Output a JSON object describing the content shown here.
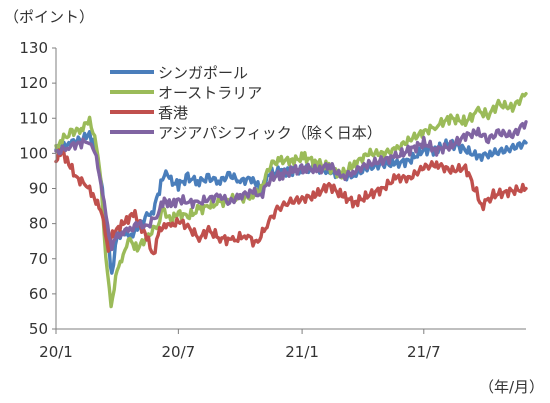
{
  "chart_data": {
    "type": "line",
    "unit_label": "（ポイント）",
    "x_unit_label": "（年/月）",
    "ylim": [
      50,
      130
    ],
    "y_ticks": [
      50,
      60,
      70,
      80,
      90,
      100,
      110,
      120,
      130
    ],
    "x_range": [
      "2020-01-01",
      "2021-11-30"
    ],
    "x_ticks": [
      {
        "date": "2020-01-01",
        "label": "20/1"
      },
      {
        "date": "2020-07-01",
        "label": "20/7"
      },
      {
        "date": "2021-01-01",
        "label": "21/1"
      },
      {
        "date": "2021-07-01",
        "label": "21/7"
      }
    ],
    "grid": false,
    "legend_position": "top-left",
    "series": [
      {
        "name": "シンガポール",
        "color": "#4a7ebb",
        "points": [
          [
            "2020-01-01",
            101
          ],
          [
            "2020-01-20",
            103
          ],
          [
            "2020-02-10",
            104
          ],
          [
            "2020-02-20",
            106
          ],
          [
            "2020-03-01",
            100
          ],
          [
            "2020-03-10",
            90
          ],
          [
            "2020-03-18",
            75
          ],
          [
            "2020-03-24",
            66
          ],
          [
            "2020-04-01",
            76
          ],
          [
            "2020-04-10",
            78
          ],
          [
            "2020-04-20",
            76
          ],
          [
            "2020-05-01",
            79
          ],
          [
            "2020-05-15",
            82
          ],
          [
            "2020-05-25",
            84
          ],
          [
            "2020-06-05",
            91
          ],
          [
            "2020-06-10",
            95
          ],
          [
            "2020-06-20",
            92
          ],
          [
            "2020-07-01",
            91
          ],
          [
            "2020-07-15",
            93
          ],
          [
            "2020-08-01",
            92
          ],
          [
            "2020-08-15",
            93
          ],
          [
            "2020-09-01",
            92
          ],
          [
            "2020-09-15",
            94
          ],
          [
            "2020-10-01",
            92
          ],
          [
            "2020-10-20",
            93
          ],
          [
            "2020-11-01",
            89
          ],
          [
            "2020-11-10",
            94
          ],
          [
            "2020-12-01",
            95
          ],
          [
            "2021-01-01",
            95
          ],
          [
            "2021-01-20",
            96
          ],
          [
            "2021-02-10",
            95
          ],
          [
            "2021-03-01",
            93
          ],
          [
            "2021-03-20",
            94
          ],
          [
            "2021-04-10",
            96
          ],
          [
            "2021-05-01",
            97
          ],
          [
            "2021-05-20",
            97
          ],
          [
            "2021-06-10",
            98
          ],
          [
            "2021-07-01",
            101
          ],
          [
            "2021-07-20",
            101
          ],
          [
            "2021-08-10",
            103
          ],
          [
            "2021-09-01",
            101
          ],
          [
            "2021-09-20",
            99
          ],
          [
            "2021-10-10",
            100
          ],
          [
            "2021-11-01",
            101
          ],
          [
            "2021-11-30",
            103
          ]
        ]
      },
      {
        "name": "オーストラリア",
        "color": "#9bbb59",
        "points": [
          [
            "2020-01-01",
            101
          ],
          [
            "2020-01-10",
            104
          ],
          [
            "2020-01-25",
            106
          ],
          [
            "2020-02-10",
            107
          ],
          [
            "2020-02-20",
            110
          ],
          [
            "2020-03-01",
            102
          ],
          [
            "2020-03-08",
            92
          ],
          [
            "2020-03-15",
            70
          ],
          [
            "2020-03-23",
            57
          ],
          [
            "2020-04-01",
            66
          ],
          [
            "2020-04-10",
            72
          ],
          [
            "2020-04-20",
            75
          ],
          [
            "2020-05-01",
            73
          ],
          [
            "2020-05-15",
            76
          ],
          [
            "2020-06-01",
            80
          ],
          [
            "2020-06-08",
            84
          ],
          [
            "2020-06-20",
            81
          ],
          [
            "2020-07-01",
            83
          ],
          [
            "2020-07-15",
            82
          ],
          [
            "2020-08-01",
            84
          ],
          [
            "2020-08-15",
            85
          ],
          [
            "2020-09-01",
            86
          ],
          [
            "2020-09-15",
            87
          ],
          [
            "2020-10-01",
            87
          ],
          [
            "2020-10-20",
            88
          ],
          [
            "2020-11-01",
            90
          ],
          [
            "2020-11-15",
            97
          ],
          [
            "2020-12-01",
            98
          ],
          [
            "2020-12-20",
            98
          ],
          [
            "2021-01-05",
            99
          ],
          [
            "2021-01-25",
            97
          ],
          [
            "2021-02-10",
            96
          ],
          [
            "2021-03-01",
            94
          ],
          [
            "2021-03-20",
            97
          ],
          [
            "2021-04-10",
            100
          ],
          [
            "2021-05-01",
            100
          ],
          [
            "2021-05-20",
            101
          ],
          [
            "2021-06-10",
            104
          ],
          [
            "2021-07-01",
            106
          ],
          [
            "2021-07-20",
            108
          ],
          [
            "2021-08-10",
            110
          ],
          [
            "2021-09-01",
            109
          ],
          [
            "2021-09-20",
            112
          ],
          [
            "2021-10-05",
            111
          ],
          [
            "2021-10-20",
            114
          ],
          [
            "2021-11-10",
            113
          ],
          [
            "2021-11-30",
            117
          ]
        ]
      },
      {
        "name": "香港",
        "color": "#c0504d",
        "points": [
          [
            "2020-01-01",
            98
          ],
          [
            "2020-01-10",
            101
          ],
          [
            "2020-01-20",
            97
          ],
          [
            "2020-02-01",
            93
          ],
          [
            "2020-02-15",
            91
          ],
          [
            "2020-02-25",
            88
          ],
          [
            "2020-03-05",
            85
          ],
          [
            "2020-03-12",
            80
          ],
          [
            "2020-03-19",
            73
          ],
          [
            "2020-03-25",
            77
          ],
          [
            "2020-04-05",
            79
          ],
          [
            "2020-04-15",
            81
          ],
          [
            "2020-04-25",
            83
          ],
          [
            "2020-05-05",
            80
          ],
          [
            "2020-05-15",
            76
          ],
          [
            "2020-05-25",
            71
          ],
          [
            "2020-06-01",
            77
          ],
          [
            "2020-06-10",
            80
          ],
          [
            "2020-06-20",
            79
          ],
          [
            "2020-07-01",
            81
          ],
          [
            "2020-07-15",
            79
          ],
          [
            "2020-08-01",
            76
          ],
          [
            "2020-08-15",
            78
          ],
          [
            "2020-09-01",
            76
          ],
          [
            "2020-09-20",
            75
          ],
          [
            "2020-10-10",
            77
          ],
          [
            "2020-10-25",
            74
          ],
          [
            "2020-11-10",
            80
          ],
          [
            "2020-11-25",
            84
          ],
          [
            "2020-12-10",
            86
          ],
          [
            "2021-01-01",
            87
          ],
          [
            "2021-01-20",
            88
          ],
          [
            "2021-02-10",
            91
          ],
          [
            "2021-03-01",
            88
          ],
          [
            "2021-03-20",
            86
          ],
          [
            "2021-04-10",
            88
          ],
          [
            "2021-05-01",
            90
          ],
          [
            "2021-05-20",
            93
          ],
          [
            "2021-06-10",
            93
          ],
          [
            "2021-07-01",
            96
          ],
          [
            "2021-07-20",
            97
          ],
          [
            "2021-08-10",
            95
          ],
          [
            "2021-09-01",
            96
          ],
          [
            "2021-09-15",
            90
          ],
          [
            "2021-09-25",
            85
          ],
          [
            "2021-10-10",
            88
          ],
          [
            "2021-11-01",
            89
          ],
          [
            "2021-11-30",
            90
          ]
        ]
      },
      {
        "name": "アジアパシフィック（除く日本）",
        "color": "#8064a2",
        "points": [
          [
            "2020-01-01",
            100
          ],
          [
            "2020-01-20",
            102
          ],
          [
            "2020-02-10",
            103
          ],
          [
            "2020-02-20",
            104
          ],
          [
            "2020-03-01",
            98
          ],
          [
            "2020-03-10",
            90
          ],
          [
            "2020-03-18",
            78
          ],
          [
            "2020-03-24",
            74
          ],
          [
            "2020-04-01",
            76
          ],
          [
            "2020-04-10",
            78
          ],
          [
            "2020-04-20",
            78
          ],
          [
            "2020-05-01",
            80
          ],
          [
            "2020-05-15",
            79
          ],
          [
            "2020-06-01",
            83
          ],
          [
            "2020-06-10",
            87
          ],
          [
            "2020-06-20",
            85
          ],
          [
            "2020-07-01",
            87
          ],
          [
            "2020-07-15",
            86
          ],
          [
            "2020-08-01",
            86
          ],
          [
            "2020-08-15",
            87
          ],
          [
            "2020-09-01",
            88
          ],
          [
            "2020-09-15",
            86
          ],
          [
            "2020-10-01",
            88
          ],
          [
            "2020-10-20",
            89
          ],
          [
            "2020-11-01",
            88
          ],
          [
            "2020-11-15",
            93
          ],
          [
            "2020-12-01",
            94
          ],
          [
            "2020-12-20",
            95
          ],
          [
            "2021-01-05",
            96
          ],
          [
            "2021-01-25",
            95
          ],
          [
            "2021-02-10",
            97
          ],
          [
            "2021-03-01",
            93
          ],
          [
            "2021-03-20",
            95
          ],
          [
            "2021-04-10",
            97
          ],
          [
            "2021-05-01",
            98
          ],
          [
            "2021-05-20",
            99
          ],
          [
            "2021-06-10",
            101
          ],
          [
            "2021-07-01",
            103
          ],
          [
            "2021-07-20",
            101
          ],
          [
            "2021-08-10",
            102
          ],
          [
            "2021-09-01",
            105
          ],
          [
            "2021-09-20",
            106
          ],
          [
            "2021-10-05",
            104
          ],
          [
            "2021-10-20",
            106
          ],
          [
            "2021-11-10",
            105
          ],
          [
            "2021-11-30",
            109
          ]
        ]
      }
    ]
  }
}
